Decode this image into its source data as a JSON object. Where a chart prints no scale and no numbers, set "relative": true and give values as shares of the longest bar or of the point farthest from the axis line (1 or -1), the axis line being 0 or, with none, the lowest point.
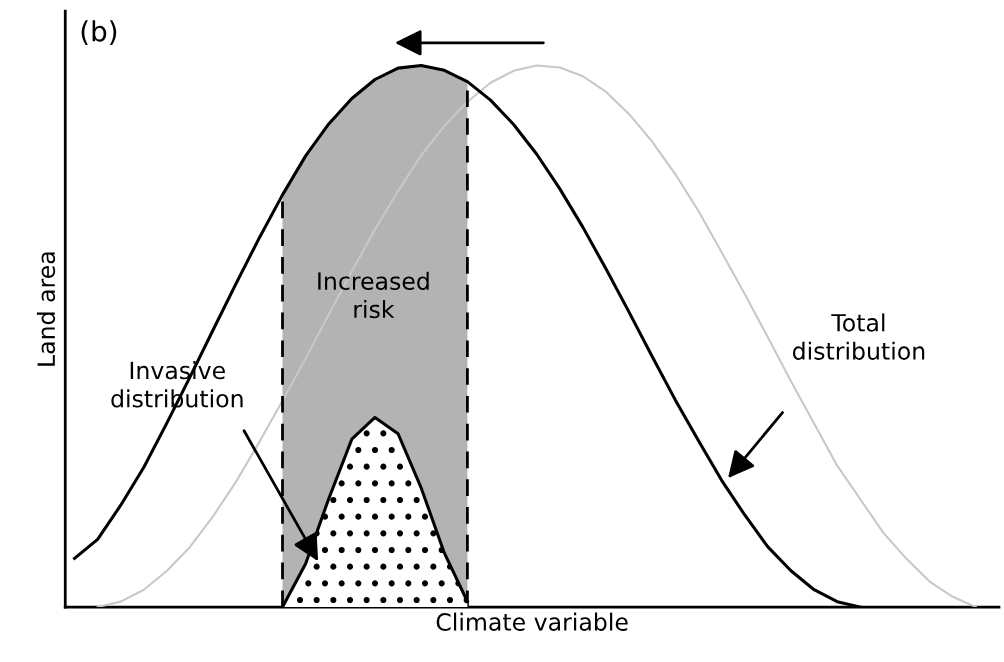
{
  "chart_data": {
    "type": "line",
    "relative": true,
    "xlabel": "Climate variable",
    "ylabel": "Land area",
    "categories": [
      null,
      null,
      null,
      null,
      null,
      null,
      null,
      null,
      null,
      null,
      null,
      null,
      null,
      null,
      null,
      null,
      null,
      null,
      null,
      null,
      null,
      null,
      null,
      null,
      null,
      null,
      null,
      null,
      null,
      null,
      null,
      null,
      null,
      null,
      null,
      null,
      null,
      null,
      null,
      null,
      null
    ],
    "series": [
      {
        "color": "#c8c8c8",
        "values": [
          null,
          0.0,
          0.01,
          0.032,
          0.067,
          0.111,
          0.168,
          0.232,
          0.305,
          0.381,
          0.459,
          0.54,
          0.62,
          0.697,
          0.768,
          0.834,
          0.888,
          0.933,
          0.968,
          0.99,
          1.0,
          0.996,
          0.98,
          0.951,
          0.91,
          0.859,
          0.799,
          0.731,
          0.655,
          0.578,
          0.498,
          0.417,
          0.339,
          0.261,
          0.199,
          0.137,
          0.089,
          0.047,
          0.019,
          0.0,
          null
        ]
      },
      {
        "type": "area",
        "color": "#b3b3b3",
        "values": [
          null,
          null,
          null,
          null,
          null,
          null,
          null,
          null,
          null,
          0.761,
          0.833,
          0.892,
          0.939,
          0.974,
          0.995,
          1.0,
          0.991,
          0.97,
          null,
          null,
          null,
          null,
          null,
          null,
          null,
          null,
          null,
          null,
          null,
          null,
          null,
          null,
          null,
          null,
          null,
          null,
          null,
          null,
          null,
          null,
          null
        ]
      },
      {
        "color": "#000000",
        "values": [
          0.09,
          0.125,
          0.188,
          0.258,
          0.34,
          0.425,
          0.512,
          0.598,
          0.682,
          0.761,
          0.833,
          0.892,
          0.939,
          0.974,
          0.995,
          1.0,
          0.991,
          0.97,
          0.936,
          0.891,
          0.836,
          0.772,
          0.701,
          0.624,
          0.544,
          0.462,
          0.382,
          0.307,
          0.234,
          0.17,
          0.111,
          0.067,
          0.032,
          0.01,
          0.0,
          null,
          null,
          null,
          null,
          null,
          null
        ]
      },
      {
        "type": "area",
        "color": "#000000",
        "values": [
          null,
          null,
          null,
          null,
          null,
          null,
          null,
          null,
          null,
          0.0,
          0.08,
          0.2,
          0.31,
          0.35,
          0.32,
          0.22,
          0.1,
          0.01,
          null,
          null,
          null,
          null,
          null,
          null,
          null,
          null,
          null,
          null,
          null,
          null,
          null,
          null,
          null,
          null,
          null,
          null,
          null,
          null,
          null,
          null,
          null
        ]
      }
    ],
    "annotations": [
      "(b)",
      "Increased risk",
      "Invasive distribution",
      "Total distribution"
    ]
  }
}
